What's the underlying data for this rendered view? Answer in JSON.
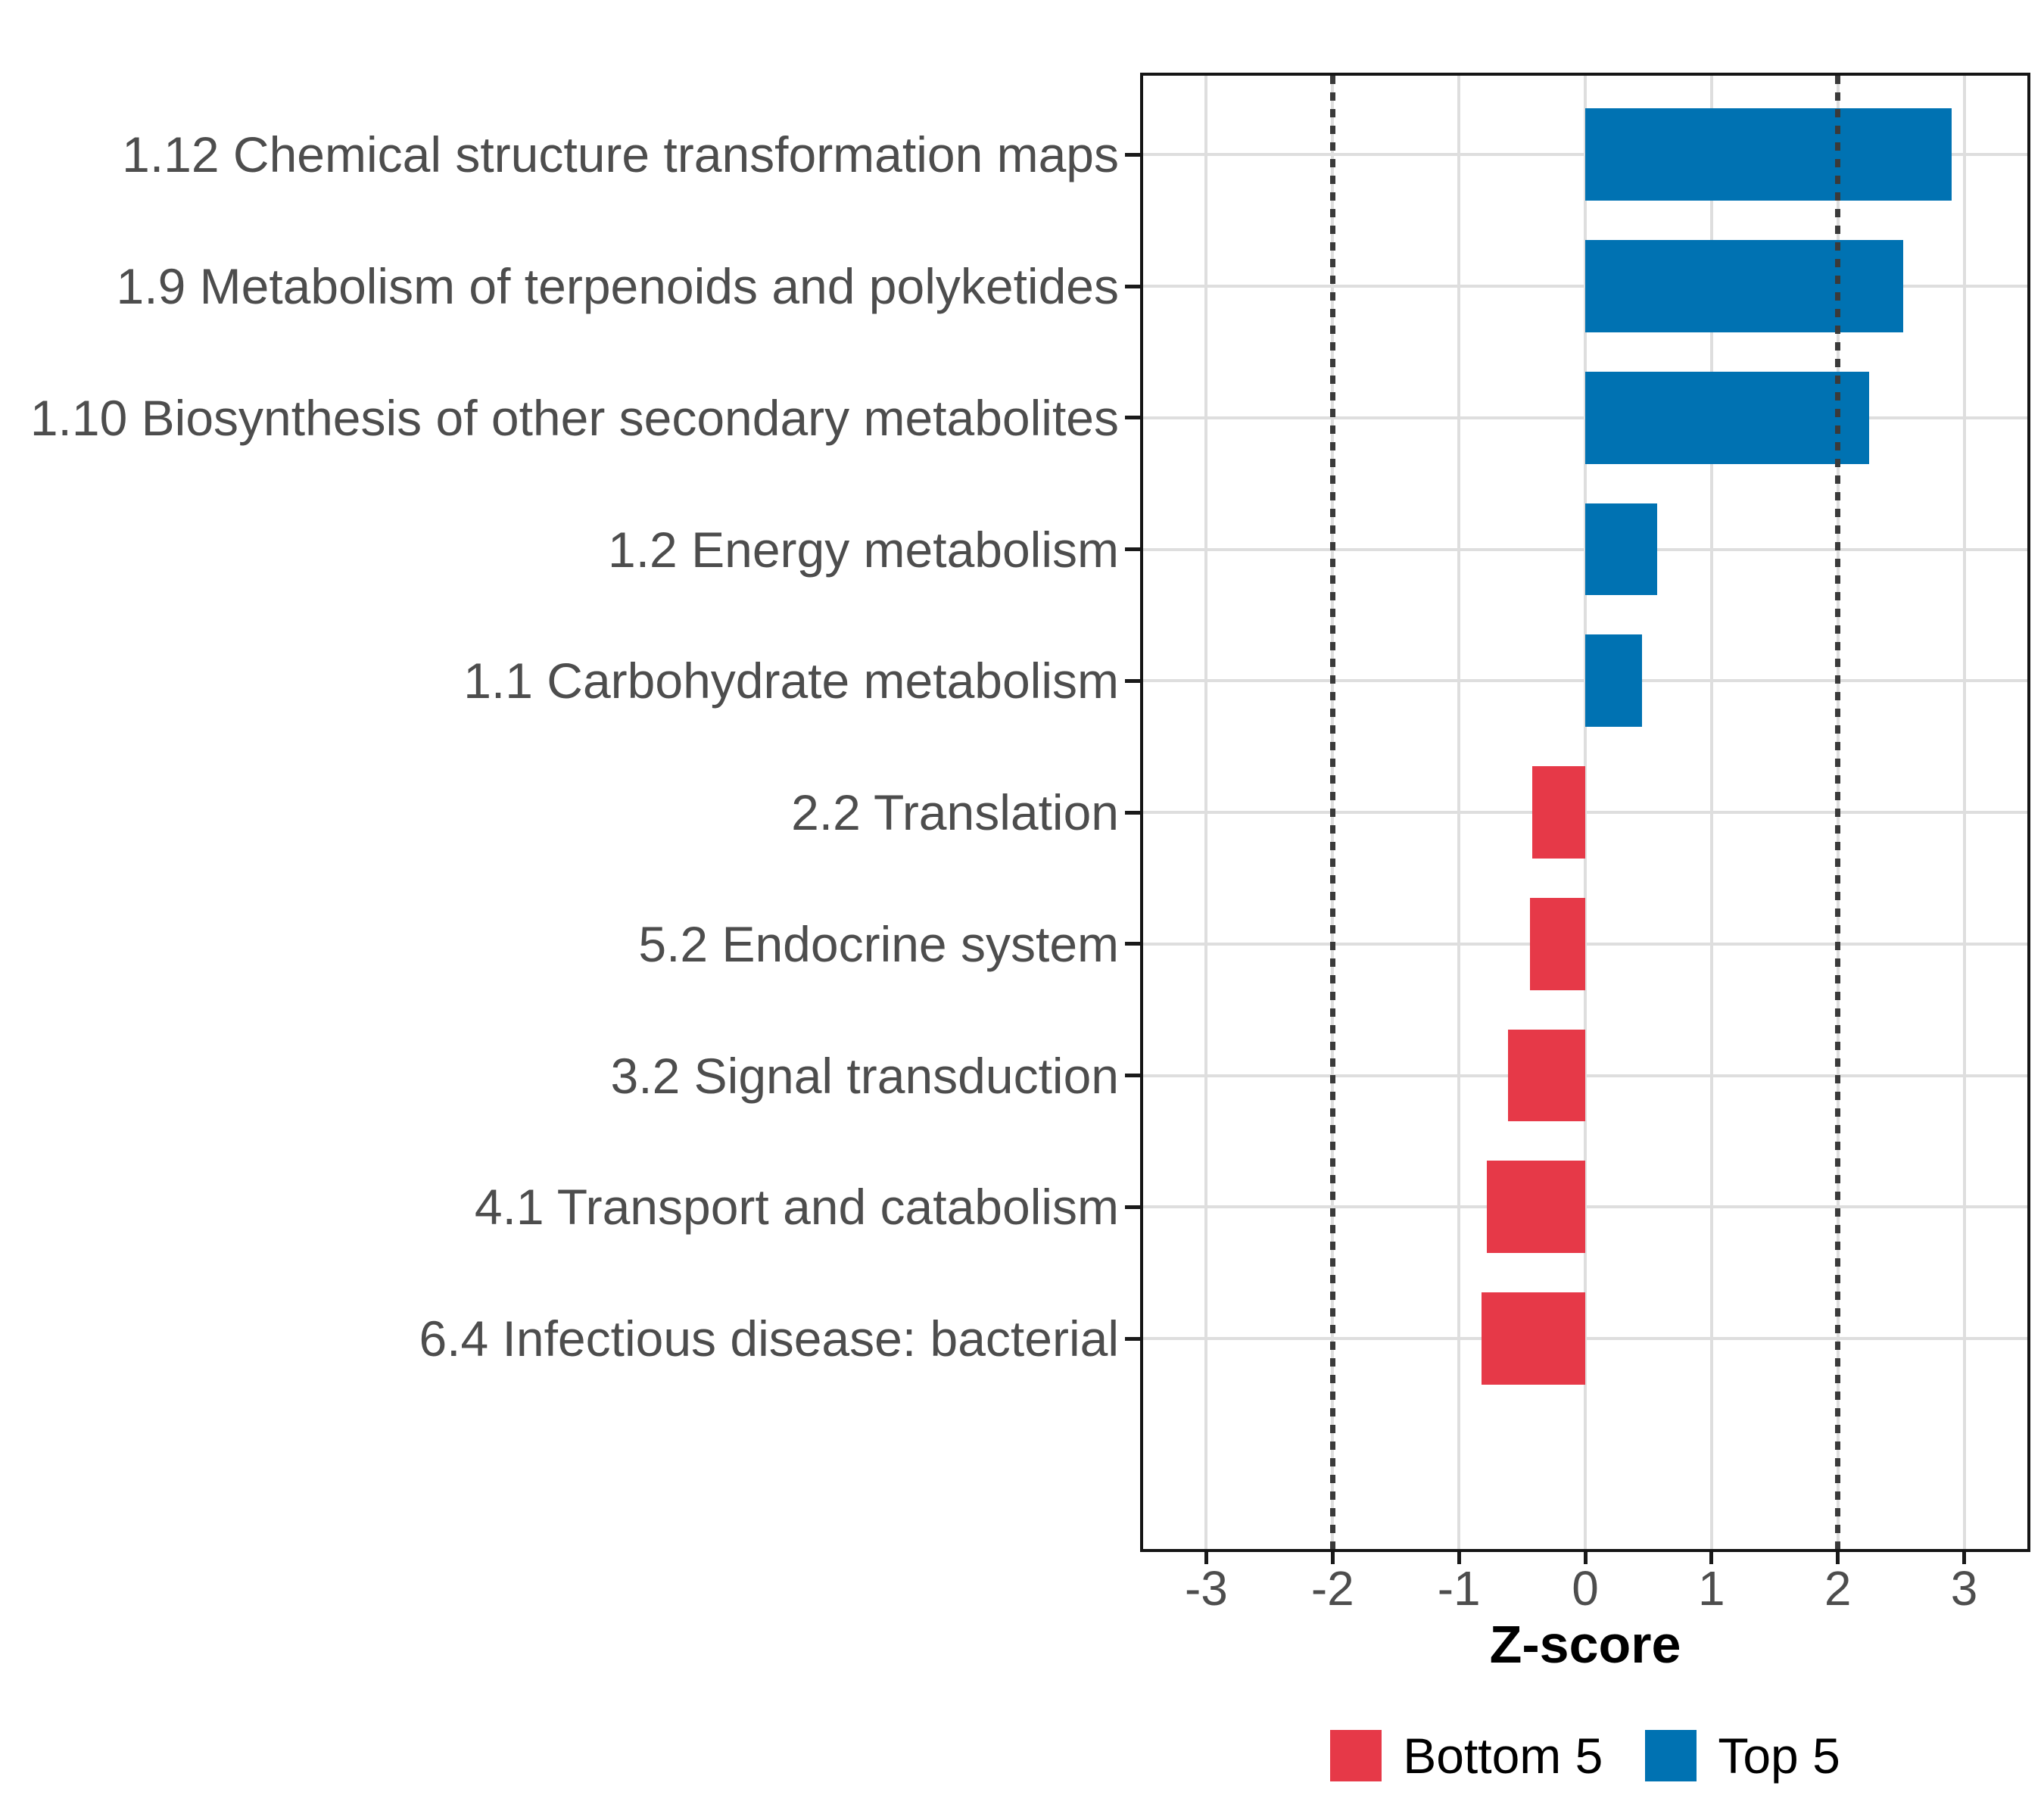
{
  "chart_data": {
    "type": "bar",
    "orientation": "horizontal",
    "title": "",
    "xlabel": "Z-score",
    "xlim": [
      -3.5,
      3.5
    ],
    "x_ticks": [
      -3,
      -2,
      -1,
      0,
      1,
      2,
      3
    ],
    "x_tick_labels": [
      "-3",
      "-2",
      "-1",
      "0",
      "1",
      "2",
      "3"
    ],
    "categories": [
      "1.12 Chemical structure transformation maps",
      "1.9 Metabolism of terpenoids and polyketides",
      "1.10 Biosynthesis of other secondary metabolites",
      "1.2 Energy metabolism",
      "1.1 Carbohydrate metabolism",
      "2.2 Translation",
      "5.2 Endocrine system",
      "3.2 Signal transduction",
      "4.1 Transport and catabolism",
      "6.4 Infectious disease: bacterial"
    ],
    "values": [
      2.9,
      2.52,
      2.25,
      0.57,
      0.45,
      -0.42,
      -0.44,
      -0.61,
      -0.78,
      -0.82
    ],
    "groups": [
      "Top 5",
      "Top 5",
      "Top 5",
      "Top 5",
      "Top 5",
      "Bottom 5",
      "Bottom 5",
      "Bottom 5",
      "Bottom 5",
      "Bottom 5"
    ],
    "series": [
      {
        "name": "Top 5",
        "color": "#0072B2",
        "values": [
          2.9,
          2.52,
          2.25,
          0.57,
          0.45
        ]
      },
      {
        "name": "Bottom 5",
        "color": "#E63948",
        "values": [
          -0.42,
          -0.44,
          -0.61,
          -0.78,
          -0.82
        ]
      }
    ],
    "reference_lines": [
      {
        "x": -2,
        "style": "dotted"
      },
      {
        "x": 2,
        "style": "dotted"
      }
    ],
    "grid": "major",
    "legend_position": "bottom-center",
    "bar_width_fraction": 0.7,
    "colors": {
      "Top 5": "#0072B2",
      "Bottom 5": "#E63948",
      "grid_line": "#DEDEDE",
      "axis_text": "#4D4D4D",
      "axis_title": "#000000",
      "reference_line": "#3A3A3A",
      "panel_border": "#151515",
      "tick_mark": "#1A1A1A",
      "background": "#FFFFFF"
    }
  },
  "legend": {
    "items": [
      {
        "label": "Bottom 5",
        "color": "#E63948"
      },
      {
        "label": "Top 5",
        "color": "#0072B2"
      }
    ]
  }
}
